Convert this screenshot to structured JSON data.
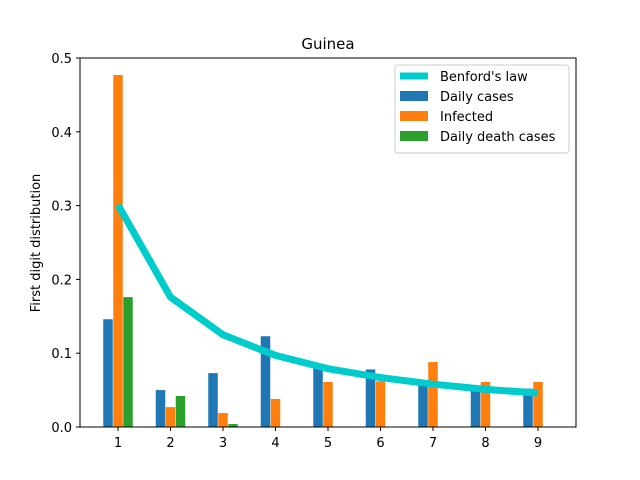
{
  "chart_data": {
    "type": "bar",
    "title": "Guinea",
    "xlabel": "",
    "ylabel": "First digit distribution",
    "categories": [
      "1",
      "2",
      "3",
      "4",
      "5",
      "6",
      "7",
      "8",
      "9"
    ],
    "ylim": [
      0,
      0.5
    ],
    "yticks": [
      "0.0",
      "0.1",
      "0.2",
      "0.3",
      "0.4",
      "0.5"
    ],
    "legend_position": "top-right",
    "grid": false,
    "series": [
      {
        "name": "Daily cases",
        "kind": "bar",
        "color": "#1f77b4",
        "values": [
          0.146,
          0.05,
          0.073,
          0.123,
          0.08,
          0.078,
          0.061,
          0.052,
          0.052
        ]
      },
      {
        "name": "Infected",
        "kind": "bar",
        "color": "#ff7f0e",
        "values": [
          0.477,
          0.027,
          0.019,
          0.038,
          0.061,
          0.062,
          0.088,
          0.061,
          0.061
        ]
      },
      {
        "name": "Daily death cases",
        "kind": "bar",
        "color": "#2ca02c",
        "values": [
          0.176,
          0.042,
          0.004,
          0,
          0,
          0,
          0,
          0,
          0
        ]
      },
      {
        "name": "Benford's law",
        "kind": "line",
        "color": "#00cccc",
        "values": [
          0.301,
          0.176,
          0.125,
          0.097,
          0.079,
          0.067,
          0.058,
          0.051,
          0.046
        ]
      }
    ],
    "legend_order": [
      "Benford's law",
      "Daily cases",
      "Infected",
      "Daily death cases"
    ]
  }
}
